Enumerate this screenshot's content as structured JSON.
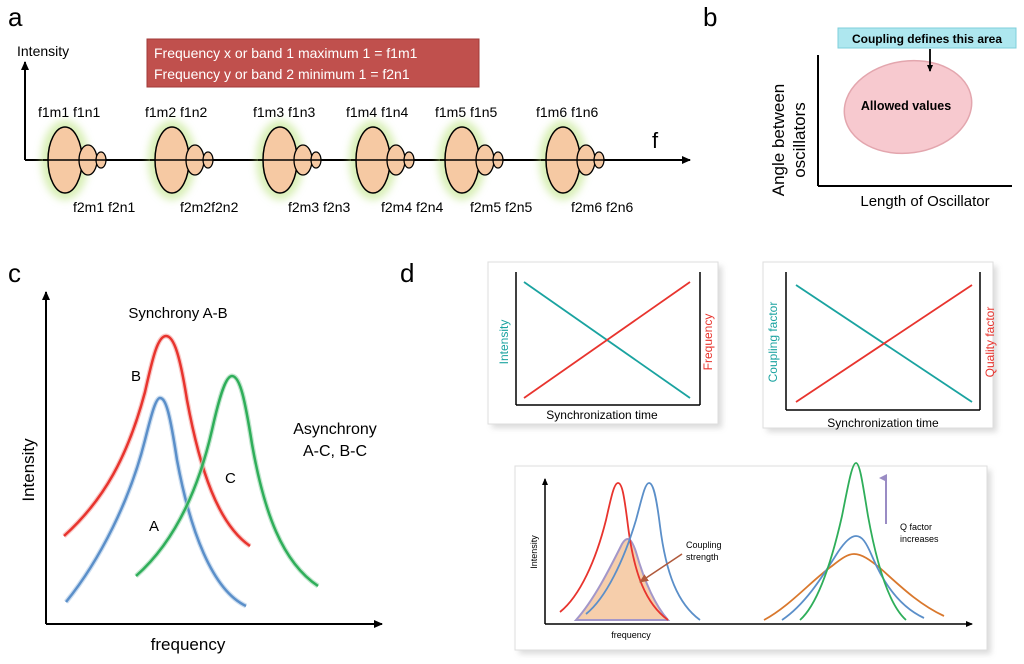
{
  "colors": {
    "red": "#e8342e",
    "blue": "#5b8fc9",
    "green": "#2fae5a",
    "teal": "#1aa3a0",
    "orange": "#d9782d",
    "pink_oval": "#f7c9cf",
    "cyan_box": "#aee7ef",
    "peach": "#f6c9a3",
    "legend_red": "#c0504d",
    "purple_arrow": "#9a8cc4"
  },
  "panel_a": {
    "letter": "a",
    "ylabel": "Intensity",
    "xlabel": "f",
    "legend": [
      "Frequency x or band 1 maximum 1 = f1m1",
      "Frequency y or band 2 minimum  1 = f2n1"
    ],
    "groups": [
      {
        "top": "f1m1 f1n1",
        "bottom": "f2m1 f2n1"
      },
      {
        "top": "f1m2 f1n2",
        "bottom": "f2m2f2n2"
      },
      {
        "top": "f1m3 f1n3",
        "bottom": "f2m3 f2n3"
      },
      {
        "top": "f1m4 f1n4",
        "bottom": "f2m4 f2n4"
      },
      {
        "top": "f1m5 f1n5",
        "bottom": "f2m5 f2n5"
      },
      {
        "top": "f1m6 f1n6",
        "bottom": "f2m6 f2n6"
      }
    ]
  },
  "panel_b": {
    "letter": "b",
    "ylabel_line1": "Angle between",
    "ylabel_line2": "oscillators",
    "xlabel": "Length of Oscillator",
    "box_label": "Coupling defines this area",
    "oval_label": "Allowed values"
  },
  "panel_c": {
    "letter": "c",
    "title": "Synchrony A-B",
    "ylabel": "Intensity",
    "xlabel": "frequency",
    "label_b": "B",
    "label_a": "A",
    "label_c": "C",
    "async_line1": "Asynchrony",
    "async_line2": "A-C, B-C"
  },
  "panel_d": {
    "letter": "d",
    "top_left": {
      "ylabel_left": "Intensity",
      "ylabel_right": "Frequency",
      "xlabel": "Synchronization time"
    },
    "top_right": {
      "ylabel_left": "Coupling factor",
      "ylabel_right": "Quality factor",
      "xlabel": "Synchronization time"
    },
    "bottom": {
      "ylabel": "Intensity",
      "xlabel": "frequency",
      "coupling_line1": "Coupling",
      "coupling_line2": "strength",
      "q_line1": "Q factor",
      "q_line2": "increases"
    }
  }
}
